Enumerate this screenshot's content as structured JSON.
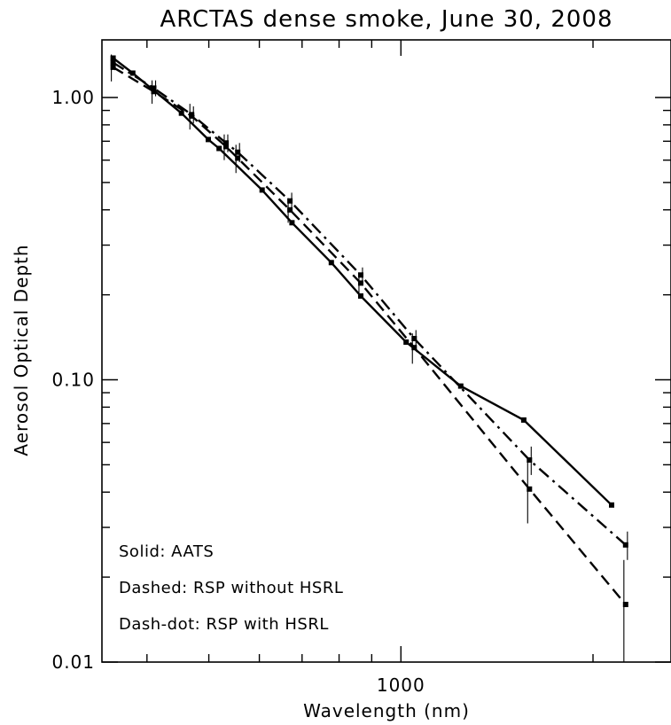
{
  "chart_data": {
    "type": "line",
    "title": "ARCTAS dense smoke, June 30, 2008",
    "xlabel": "Wavelength (nm)",
    "ylabel": "Aerosol Optical Depth",
    "x_scale": "log",
    "y_scale": "log",
    "xlim": [
      340,
      2650
    ],
    "ylim": [
      0.01,
      1.6
    ],
    "x_ticks": [
      {
        "value": 1000,
        "label": "1000"
      }
    ],
    "y_ticks": [
      {
        "value": 0.01,
        "label": "0.01"
      },
      {
        "value": 0.1,
        "label": "0.10"
      },
      {
        "value": 1.0,
        "label": "1.00"
      }
    ],
    "grid": false,
    "series": [
      {
        "name": "AATS",
        "style": "solid",
        "x": [
          354,
          380,
          453,
          499,
          519,
          606,
          675,
          778,
          865,
          1019,
          1241,
          1558,
          2139
        ],
        "y": [
          1.38,
          1.22,
          0.88,
          0.71,
          0.66,
          0.47,
          0.36,
          0.26,
          0.198,
          0.136,
          0.095,
          0.072,
          0.036
        ],
        "error_bars": false
      },
      {
        "name": "RSP without HSRL",
        "style": "dashed",
        "x": [
          354,
          410,
          470,
          532,
          555,
          670,
          865,
          1049,
          1590,
          2250
        ],
        "y": [
          1.28,
          1.05,
          0.86,
          0.67,
          0.61,
          0.4,
          0.22,
          0.13,
          0.041,
          0.016
        ],
        "yerr": [
          0.14,
          0.1,
          0.09,
          0.07,
          0.07,
          0.04,
          0.02,
          0.016,
          0.01,
          0.007
        ]
      },
      {
        "name": "RSP with HSRL",
        "style": "dash-dot",
        "x": [
          354,
          410,
          470,
          532,
          555,
          670,
          865,
          1049,
          1590,
          2250
        ],
        "y": [
          1.33,
          1.08,
          0.87,
          0.69,
          0.64,
          0.43,
          0.235,
          0.14,
          0.052,
          0.026
        ],
        "yerr": [
          0.08,
          0.07,
          0.06,
          0.05,
          0.05,
          0.03,
          0.015,
          0.01,
          0.006,
          0.003
        ]
      }
    ],
    "annotations": [
      "Solid: AATS",
      "Dashed: RSP without HSRL",
      "Dash-dot: RSP with HSRL"
    ],
    "legend_position": "bottom-left"
  }
}
